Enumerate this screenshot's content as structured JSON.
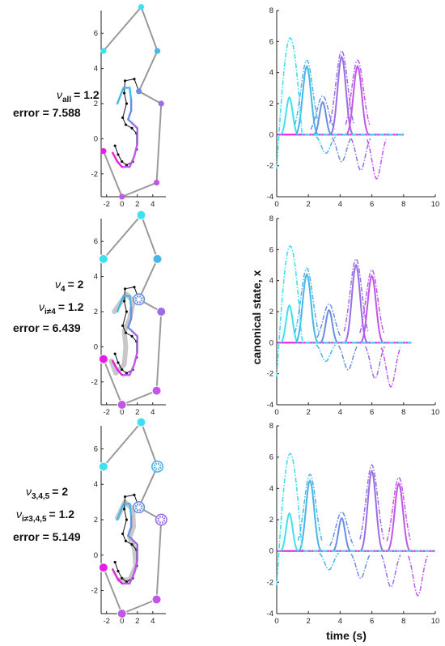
{
  "colors": {
    "cyan": "#3fe0f0",
    "sky": "#49b6e8",
    "blue": "#6b8ee0",
    "violet": "#9b6ee6",
    "purple": "#c157e8",
    "magenta": "#e51ee6",
    "gray_link": "#9a9a9a",
    "gray_target": "#c8c8c8",
    "black": "#111111"
  },
  "panels": [
    {
      "annotation": {
        "nu_main": "all",
        "nu_main_value": "= 1.2",
        "nu_sub": "",
        "nu_sub_value": "",
        "error": "error = 7.588"
      },
      "highlighted_joints": []
    },
    {
      "annotation": {
        "nu_main": "4",
        "nu_main_value": "= 2",
        "nu_sub": "i≠4",
        "nu_sub_value": "= 1.2",
        "error": "error = 6.439"
      },
      "highlighted_joints": [
        3
      ]
    },
    {
      "annotation": {
        "nu_main": "3,4,5",
        "nu_main_value": "= 2",
        "nu_sub": "i≠3,4,5",
        "nu_sub_value": "= 1.2",
        "error": "error = 5.149"
      },
      "highlighted_joints": [
        2,
        3,
        4
      ]
    }
  ],
  "chart_data": [
    {
      "type": "line",
      "title": "",
      "description_role": "spatial",
      "xlim": [
        -2.7,
        5.7
      ],
      "ylim": [
        -3.3,
        7.3
      ],
      "xticks": [
        "-2",
        "0",
        "2",
        "4"
      ],
      "yticks": [
        "-2",
        "0",
        "2",
        "4",
        "6"
      ],
      "joints": [
        [
          -2.4,
          5.0
        ],
        [
          2.5,
          7.5
        ],
        [
          4.6,
          5.0
        ],
        [
          2.2,
          2.7
        ],
        [
          5.1,
          2.0
        ],
        [
          4.5,
          -2.5
        ],
        [
          0.0,
          -3.3
        ],
        [
          -2.4,
          -0.7
        ]
      ],
      "joint_colors": [
        "cyan",
        "cyan",
        "sky",
        "blue",
        "violet",
        "purple",
        "purple",
        "magenta"
      ],
      "grid": false
    },
    {
      "type": "line",
      "title": "",
      "xlabel": "time (s)",
      "ylabel": "canonical state,  x",
      "xlim": [
        0,
        10
      ],
      "ylim": [
        -4,
        8
      ],
      "xticks": [
        "0",
        "2",
        "4",
        "6",
        "8",
        "10"
      ],
      "yticks": [
        "-4",
        "-2",
        "0",
        "2",
        "4",
        "6",
        "8"
      ],
      "grid": false,
      "series_peaks": {
        "panel1": {
          "solid": [
            [
              0.8,
              2.4,
              "cyan"
            ],
            [
              1.9,
              4.4,
              "sky"
            ],
            [
              2.9,
              2.1,
              "blue"
            ],
            [
              4.1,
              5.0,
              "violet"
            ],
            [
              5.1,
              4.4,
              "purple"
            ]
          ],
          "dashed_peak": [
            0.9,
            7.3
          ],
          "duration": 8
        },
        "panel2": {
          "solid": [
            [
              0.8,
              2.4,
              "cyan"
            ],
            [
              1.9,
              4.4,
              "sky"
            ],
            [
              3.3,
              2.1,
              "blue"
            ],
            [
              5.0,
              5.0,
              "violet"
            ],
            [
              6.0,
              4.3,
              "purple"
            ]
          ],
          "dashed_peak": [
            0.9,
            7.3
          ],
          "duration": 8.5
        },
        "panel3": {
          "solid": [
            [
              0.8,
              2.4,
              "cyan"
            ],
            [
              2.1,
              4.5,
              "sky"
            ],
            [
              4.1,
              2.1,
              "blue"
            ],
            [
              6.0,
              5.1,
              "violet"
            ],
            [
              7.7,
              4.3,
              "purple"
            ]
          ],
          "dashed_peak": [
            0.9,
            7.3
          ],
          "duration": 10
        }
      }
    }
  ]
}
